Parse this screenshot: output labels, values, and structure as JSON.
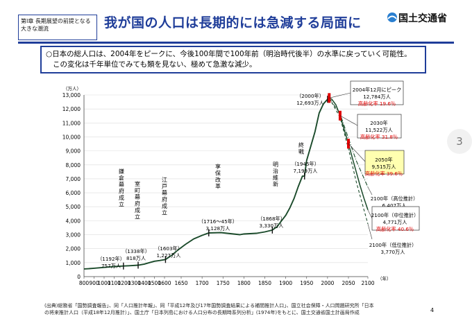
{
  "header": {
    "chapter_label": "第Ⅰ章 長期展望の前提となる大きな潮流",
    "title": "我が国の人口は長期的には急減する局面に",
    "logo_text": "国土交通省"
  },
  "summary": {
    "line1": "○日本の総人口は、2004年をピークに、今後100年間で100年前（明治時代後半）の水準に戻っていく可能性。",
    "line2": "この変化は千年単位でみても類を見ない、極めて急激な減少。"
  },
  "chart_data": {
    "type": "line",
    "title": "",
    "xlabel": "（年）",
    "ylabel": "（万人）",
    "xlim": [
      800,
      2100
    ],
    "ylim": [
      0,
      13000
    ],
    "x_ticks": [
      800,
      900,
      1000,
      1100,
      1200,
      1300,
      1400,
      1500,
      1600,
      1650,
      1700,
      1750,
      1800,
      1850,
      1900,
      1950,
      2000,
      2050,
      2100
    ],
    "y_ticks": [
      0,
      1000,
      2000,
      3000,
      4000,
      5000,
      6000,
      7000,
      8000,
      9000,
      10000,
      11000,
      12000,
      13000
    ],
    "series": [
      {
        "style": "solid",
        "x": [
          800,
          850,
          900,
          950,
          1000,
          1050,
          1100,
          1150,
          1192,
          1250,
          1338,
          1400,
          1450,
          1500,
          1550,
          1603,
          1620,
          1640,
          1660,
          1680,
          1700,
          1716,
          1745,
          1760,
          1790,
          1800,
          1830,
          1850,
          1868,
          1880,
          1890,
          1900,
          1910,
          1920,
          1930,
          1940,
          1945,
          1950,
          1960,
          1970,
          1980,
          1990,
          2000,
          2004
        ],
        "y": [
          551,
          570,
          600,
          630,
          660,
          690,
          720,
          740,
          757,
          780,
          818,
          900,
          1000,
          1100,
          1150,
          1227,
          1500,
          1900,
          2300,
          2700,
          2950,
          3128,
          3150,
          3100,
          3000,
          3050,
          3100,
          3200,
          3330,
          3590,
          4000,
          4380,
          4920,
          5596,
          6445,
          7193,
          7199,
          8320,
          9342,
          10372,
          11706,
          12361,
          12693,
          12784
        ]
      },
      {
        "name": "中位推計",
        "style": "solid",
        "x": [
          2004,
          2010,
          2020,
          2030,
          2040,
          2050,
          2060,
          2070,
          2080,
          2090,
          2100
        ],
        "y": [
          12784,
          12700,
          12300,
          11522,
          10500,
          9515,
          8500,
          7500,
          6500,
          5600,
          4771
        ]
      },
      {
        "name": "高位推計",
        "style": "dashdot",
        "x": [
          2004,
          2030,
          2050,
          2070,
          2100
        ],
        "y": [
          12784,
          11650,
          9900,
          8300,
          6407
        ]
      },
      {
        "name": "低位推計",
        "style": "dashed",
        "x": [
          2004,
          2030,
          2050,
          2070,
          2100
        ],
        "y": [
          12784,
          11400,
          9150,
          6800,
          3770
        ]
      }
    ],
    "markers": [
      {
        "kind": "tick",
        "x": 1192,
        "y": 757
      },
      {
        "kind": "tick",
        "x": 1338,
        "y": 818
      },
      {
        "kind": "tick",
        "x": 1603,
        "y": 1227
      },
      {
        "kind": "tick",
        "x": 1716,
        "y": 3128
      },
      {
        "kind": "tick",
        "x": 1868,
        "y": 3330
      },
      {
        "kind": "tick",
        "x": 1945,
        "y": 7199
      },
      {
        "kind": "tick",
        "x": 2000,
        "y": 12693
      },
      {
        "kind": "red",
        "x": 2004,
        "y": 12784
      },
      {
        "kind": "red",
        "x": 2030,
        "y": 11522
      },
      {
        "kind": "red",
        "x": 2050,
        "y": 9515
      }
    ],
    "annotations": [
      {
        "id": "kamakura",
        "vertical": "鎌倉幕府成立",
        "lines": [
          "（1192年）",
          "757万人"
        ]
      },
      {
        "id": "muromachi",
        "vertical": "室町幕府成立",
        "lines": [
          "（1338年）",
          "818万人"
        ]
      },
      {
        "id": "edo",
        "vertical": "江戸幕府成立",
        "lines": [
          "（1603年）",
          "1,227万人"
        ]
      },
      {
        "id": "kyoho",
        "vertical": "享保改革",
        "lines": [
          "（1716～45年）",
          "3,128万人"
        ]
      },
      {
        "id": "meiji",
        "vertical": "明治維新",
        "lines": [
          "（1868年）",
          "3,330万人"
        ]
      },
      {
        "id": "shusen",
        "vertical": "終戦",
        "lines": [
          "（1945年）",
          "7,199万人"
        ]
      },
      {
        "id": "y2000",
        "lines": [
          "（2000年）",
          "12,693万人"
        ]
      },
      {
        "id": "peak",
        "lines": [
          "2004年12月にピーク",
          "12,784万人",
          "高齢化率 19.6％"
        ]
      },
      {
        "id": "y2030",
        "lines": [
          "2030年",
          "11,522万人",
          "高齢化率 31.8％"
        ]
      },
      {
        "id": "y2050",
        "lines": [
          "2050年",
          "9,515万人",
          "高齢化率 39.6％"
        ]
      },
      {
        "id": "high",
        "lines": [
          "2100年（高位推計）",
          "6,407万人"
        ]
      },
      {
        "id": "mid",
        "lines": [
          "2100年（中位推計）",
          "4,771万人",
          "高齢化率 40.6％"
        ]
      },
      {
        "id": "low",
        "lines": [
          "2100年（低位推計）",
          "3,770万人"
        ]
      }
    ]
  },
  "colors": {
    "header_blue": "#1f3d99",
    "line_green": "#1a4a2a",
    "marker_red": "#e00000",
    "text_red": "#e00000",
    "highlight_yellow": "#ffffb0"
  },
  "page_indicator": "3",
  "source": {
    "line1": "(出典)総務省「国勢調査報告」、同「人口推計年報」、同「平成12年及び17年国勢調査結果による補間推計人口」、国立社会保障・人口問題研究所「日本",
    "line2": "の将来推計人口（平成18年12月推計）」、国土庁「日本列島における人口分布の長期時系列分析」(1974年)をもとに、国土交通省国土計画局作成"
  },
  "page_number": "4"
}
